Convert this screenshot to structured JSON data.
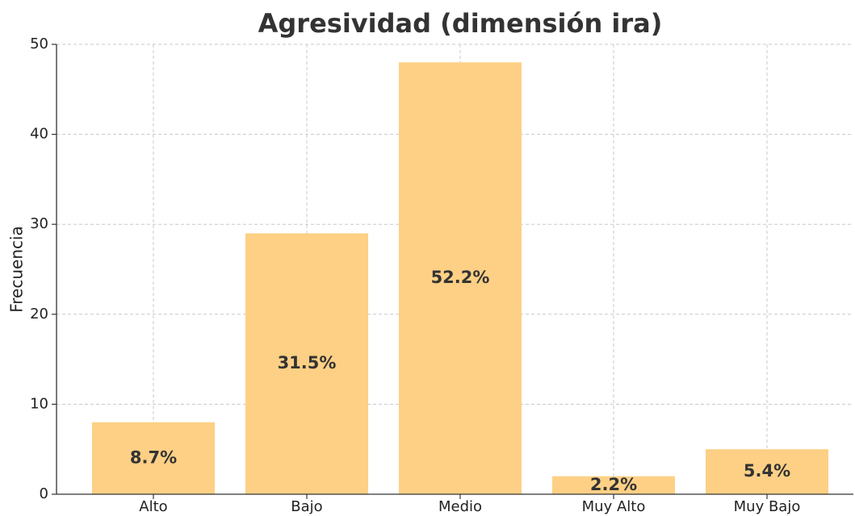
{
  "chart_data": {
    "type": "bar",
    "title": "Agresividad (dimensión ira)",
    "ylabel": "Frecuencia",
    "categories": [
      "Alto",
      "Bajo",
      "Medio",
      "Muy Alto",
      "Muy Bajo"
    ],
    "values": [
      8,
      29,
      48,
      2,
      5
    ],
    "bar_labels": [
      "8.7%",
      "31.5%",
      "52.2%",
      "2.2%",
      "5.4%"
    ],
    "color": "#fdd085",
    "ylim": [
      0,
      50
    ],
    "yticks": [
      0,
      10,
      20,
      30,
      40,
      50
    ],
    "grid": true
  }
}
